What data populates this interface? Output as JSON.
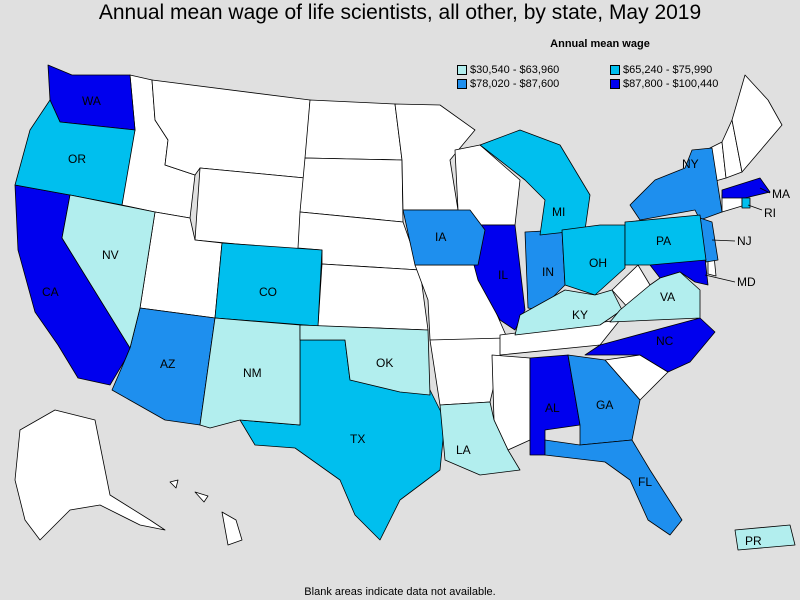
{
  "title": "Annual mean wage of life scientists, all other, by state, May 2019",
  "legend": {
    "title": "Annual mean wage",
    "items": [
      {
        "label": "$30,540 - $63,960",
        "color": "#b2eeee"
      },
      {
        "label": "$65,240 - $75,990",
        "color": "#00bfee"
      },
      {
        "label": "$78,020 - $87,600",
        "color": "#1e8fee"
      },
      {
        "label": "$87,800 - $100,440",
        "color": "#0000ee"
      }
    ]
  },
  "footnote": "Blank areas indicate data not available.",
  "colors": {
    "no_data": "#ffffff",
    "background": "#e0e0e0"
  },
  "states": [
    {
      "abbr": "WA",
      "tier": 4
    },
    {
      "abbr": "OR",
      "tier": 2
    },
    {
      "abbr": "CA",
      "tier": 4
    },
    {
      "abbr": "NV",
      "tier": 1
    },
    {
      "abbr": "AZ",
      "tier": 3
    },
    {
      "abbr": "NM",
      "tier": 1
    },
    {
      "abbr": "CO",
      "tier": 2
    },
    {
      "abbr": "TX",
      "tier": 2
    },
    {
      "abbr": "OK",
      "tier": 1
    },
    {
      "abbr": "IA",
      "tier": 3
    },
    {
      "abbr": "IL",
      "tier": 4
    },
    {
      "abbr": "IN",
      "tier": 3
    },
    {
      "abbr": "MI",
      "tier": 2
    },
    {
      "abbr": "OH",
      "tier": 2
    },
    {
      "abbr": "KY",
      "tier": 1
    },
    {
      "abbr": "LA",
      "tier": 1
    },
    {
      "abbr": "AL",
      "tier": 4
    },
    {
      "abbr": "GA",
      "tier": 3
    },
    {
      "abbr": "FL",
      "tier": 3
    },
    {
      "abbr": "NC",
      "tier": 4
    },
    {
      "abbr": "VA",
      "tier": 1
    },
    {
      "abbr": "MD",
      "tier": 4
    },
    {
      "abbr": "PA",
      "tier": 2
    },
    {
      "abbr": "NY",
      "tier": 3
    },
    {
      "abbr": "NJ",
      "tier": 3
    },
    {
      "abbr": "MA",
      "tier": 4
    },
    {
      "abbr": "RI",
      "tier": 2
    },
    {
      "abbr": "PR",
      "tier": 1
    }
  ]
}
